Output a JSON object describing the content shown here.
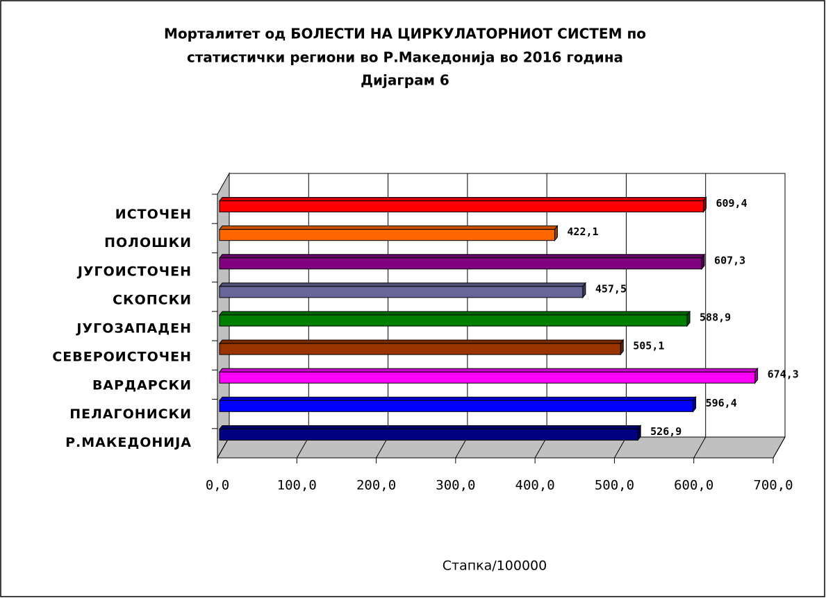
{
  "chart_data": {
    "type": "bar3d_horizontal",
    "title": [
      "Морталитет од БОЛЕСТИ НА ЦИРКУЛАТОРНИОТ СИСТЕМ по",
      "статистички региони во Р.Македонија во 2016 година",
      "Дијаграм 6"
    ],
    "x_label": "Стапка/100000",
    "categories": [
      "ИСТОЧЕН",
      "ПОЛОШКИ",
      "ЈУГОИСТОЧЕН",
      "СКОПСКИ",
      "ЈУГОЗАПАДЕН",
      "СЕВЕРОИСТОЧЕН",
      "ВАРДАРСКИ",
      "ПЕЛАГОНИСКИ",
      "Р.МАКЕДОНИЈА"
    ],
    "values": [
      609.4,
      422.1,
      607.3,
      457.5,
      588.9,
      505.1,
      674.3,
      596.4,
      526.9
    ],
    "value_labels": [
      "609,4",
      "422,1",
      "607,3",
      "457,5",
      "588,9",
      "505,1",
      "674,3",
      "596,4",
      "526,9"
    ],
    "colors": [
      "#ff0000",
      "#ff6600",
      "#800080",
      "#666699",
      "#008000",
      "#993300",
      "#ff00ff",
      "#0000ff",
      "#000080"
    ],
    "xlim": [
      0,
      700
    ],
    "xticks": [
      {
        "value": 0,
        "label": "0,0"
      },
      {
        "value": 100,
        "label": "100,0"
      },
      {
        "value": 200,
        "label": "200,0"
      },
      {
        "value": 300,
        "label": "300,0"
      },
      {
        "value": 400,
        "label": "400,0"
      },
      {
        "value": 500,
        "label": "500,0"
      },
      {
        "value": 600,
        "label": "600,0"
      },
      {
        "value": 700,
        "label": "700,0"
      }
    ],
    "grid": true
  }
}
